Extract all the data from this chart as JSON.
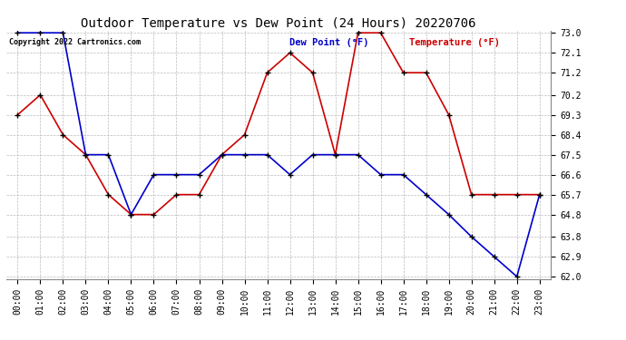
{
  "title": "Outdoor Temperature vs Dew Point (24 Hours) 20220706",
  "copyright": "Copyright 2022 Cartronics.com",
  "legend_dew": "Dew Point (°F)",
  "legend_temp": "Temperature (°F)",
  "hours": [
    "00:00",
    "01:00",
    "02:00",
    "03:00",
    "04:00",
    "05:00",
    "06:00",
    "07:00",
    "08:00",
    "09:00",
    "10:00",
    "11:00",
    "12:00",
    "13:00",
    "14:00",
    "15:00",
    "16:00",
    "17:00",
    "18:00",
    "19:00",
    "20:00",
    "21:00",
    "22:00",
    "23:00"
  ],
  "temperature": [
    69.3,
    70.2,
    68.4,
    67.5,
    65.7,
    64.8,
    64.8,
    65.7,
    65.7,
    67.5,
    68.4,
    71.2,
    72.1,
    71.2,
    67.5,
    73.0,
    73.0,
    71.2,
    71.2,
    69.3,
    65.7,
    65.7,
    65.7,
    65.7
  ],
  "dew_point": [
    73.0,
    73.0,
    73.0,
    67.5,
    67.5,
    64.8,
    66.6,
    66.6,
    66.6,
    67.5,
    67.5,
    67.5,
    66.6,
    67.5,
    67.5,
    67.5,
    66.6,
    66.6,
    65.7,
    64.8,
    63.8,
    62.9,
    62.0,
    65.7
  ],
  "temp_color": "#cc0000",
  "dew_color": "#0000cc",
  "ylim_min": 62.0,
  "ylim_max": 73.0,
  "yticks": [
    73.0,
    72.1,
    71.2,
    70.2,
    69.3,
    68.4,
    67.5,
    66.6,
    65.7,
    64.8,
    63.8,
    62.9,
    62.0
  ],
  "bg_color": "#ffffff",
  "grid_color": "#bbbbbb",
  "marker": "+",
  "marker_color": "#000000",
  "marker_size": 5,
  "linewidth": 1.2,
  "title_fontsize": 10,
  "tick_fontsize": 7,
  "copyright_fontsize": 6,
  "legend_fontsize": 7.5
}
